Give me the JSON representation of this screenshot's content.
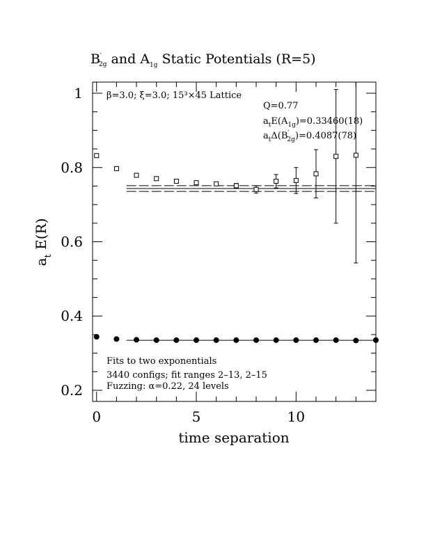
{
  "chart_data": {
    "type": "scatter",
    "title": {
      "main": "B",
      "prime": "′",
      "sub": "2g",
      "mid": " and A",
      "sub2": "1g",
      "rest": " Static Potentials (R=5)"
    },
    "xlabel": "time separation",
    "ylabel": {
      "main": "a",
      "sub": "t",
      "rest": " E(R)"
    },
    "xlim": [
      -0.2,
      14
    ],
    "ylim": [
      0.17,
      1.03
    ],
    "xticks": [
      0,
      5,
      10
    ],
    "yticks": [
      0.2,
      0.4,
      0.6,
      0.8,
      1
    ],
    "ytick_labels": [
      "0.2",
      "0.4",
      "0.6",
      "0.8",
      "1"
    ],
    "xtick_labels": [
      "0",
      "5",
      "10"
    ],
    "annotations": {
      "lattice": "β=3.0; ξ=3.0; 15³×45 Lattice",
      "q": "Q=0.77",
      "energy": {
        "pre": "a",
        "sub": "t",
        "mid": "E(A",
        "sub2": "1g",
        "rest": ")=0.33460(18)"
      },
      "gap": {
        "pre": "a",
        "sub": "t",
        "mid": "Δ(B",
        "prime": "′",
        "sub2": "2g",
        "rest": ")=0.4087(78)"
      },
      "fits": "Fits to two exponentials",
      "configs": "3440 configs; fit ranges 2–13, 2–15",
      "fuzzing": "Fuzzing: α=0.22, 24 levels"
    },
    "series": [
      {
        "marker": "open-square",
        "points": [
          {
            "x": 0,
            "y": 0.832,
            "err": 0.004
          },
          {
            "x": 1,
            "y": 0.797,
            "err": 0.004
          },
          {
            "x": 2,
            "y": 0.779,
            "err": 0.004
          },
          {
            "x": 3,
            "y": 0.77,
            "err": 0.004
          },
          {
            "x": 4,
            "y": 0.763,
            "err": 0.004
          },
          {
            "x": 5,
            "y": 0.759,
            "err": 0.005
          },
          {
            "x": 6,
            "y": 0.756,
            "err": 0.005
          },
          {
            "x": 7,
            "y": 0.751,
            "err": 0.006
          },
          {
            "x": 8,
            "y": 0.741,
            "err": 0.01
          },
          {
            "x": 9,
            "y": 0.763,
            "err": 0.018
          },
          {
            "x": 10,
            "y": 0.765,
            "err": 0.035
          },
          {
            "x": 11,
            "y": 0.783,
            "err": 0.065
          },
          {
            "x": 12,
            "y": 0.83,
            "err": 0.18
          },
          {
            "x": 13,
            "y": 0.833,
            "err": 0.29
          }
        ]
      },
      {
        "marker": "filled-circle",
        "points": [
          {
            "x": 0,
            "y": 0.344
          },
          {
            "x": 1,
            "y": 0.338
          },
          {
            "x": 2,
            "y": 0.336
          },
          {
            "x": 3,
            "y": 0.335
          },
          {
            "x": 4,
            "y": 0.335
          },
          {
            "x": 5,
            "y": 0.335
          },
          {
            "x": 6,
            "y": 0.335
          },
          {
            "x": 7,
            "y": 0.335
          },
          {
            "x": 8,
            "y": 0.335
          },
          {
            "x": 9,
            "y": 0.335
          },
          {
            "x": 10,
            "y": 0.335
          },
          {
            "x": 11,
            "y": 0.335
          },
          {
            "x": 12,
            "y": 0.335
          },
          {
            "x": 13,
            "y": 0.334
          },
          {
            "x": 14,
            "y": 0.335
          }
        ]
      }
    ],
    "fit_lines": [
      {
        "y": 0.7433,
        "x_start": 1.5,
        "x_end": 14,
        "style": "solid"
      },
      {
        "y": 0.7511,
        "x_start": 1.5,
        "x_end": 14,
        "style": "dashed"
      },
      {
        "y": 0.7355,
        "x_start": 1.5,
        "x_end": 14,
        "style": "dashed"
      },
      {
        "y": 0.3346,
        "x_start": 1.5,
        "x_end": 14,
        "style": "solid"
      }
    ]
  }
}
